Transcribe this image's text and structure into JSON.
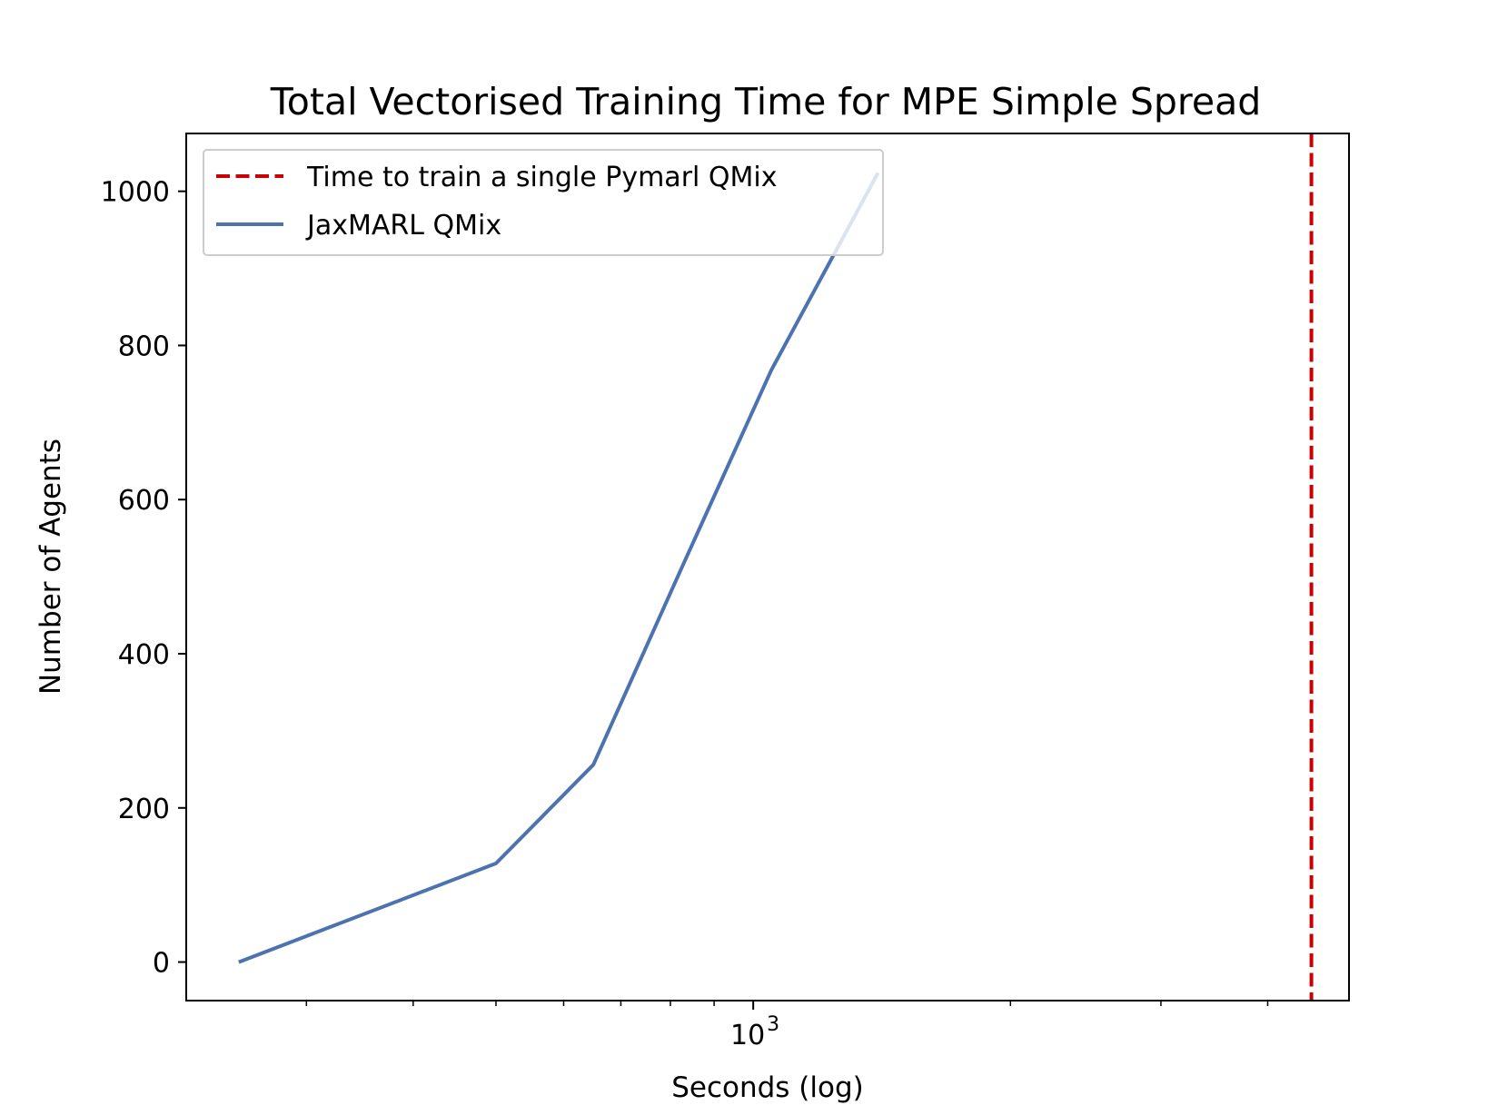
{
  "chart_data": {
    "type": "line",
    "title": "Total Vectorised Training Time for MPE Simple Spread",
    "xlabel": "Seconds (log)",
    "ylabel": "Number of Agents",
    "xscale": "log",
    "xlim": [
      217,
      4980
    ],
    "ylim": [
      -50,
      1075
    ],
    "yticks": [
      0,
      200,
      400,
      600,
      800,
      1000
    ],
    "xticks_major": [
      {
        "value": 1000,
        "base": "10",
        "exp": "3"
      }
    ],
    "xticks_minor": [
      300,
      400,
      500,
      600,
      700,
      800,
      900,
      2000,
      3000,
      4000
    ],
    "grid": false,
    "legend_position": "upper left",
    "series": [
      {
        "name": "JaxMARL QMix",
        "color": "#4c72b0",
        "style": "solid",
        "x": [
          250,
          500,
          650,
          825,
          1050,
          1400
        ],
        "y": [
          0,
          128,
          256,
          512,
          768,
          1024
        ]
      }
    ],
    "vlines": [
      {
        "name": "Time to train a single Pymarl QMix",
        "color": "#cc0000",
        "style": "dashed",
        "x": 4500
      }
    ]
  }
}
